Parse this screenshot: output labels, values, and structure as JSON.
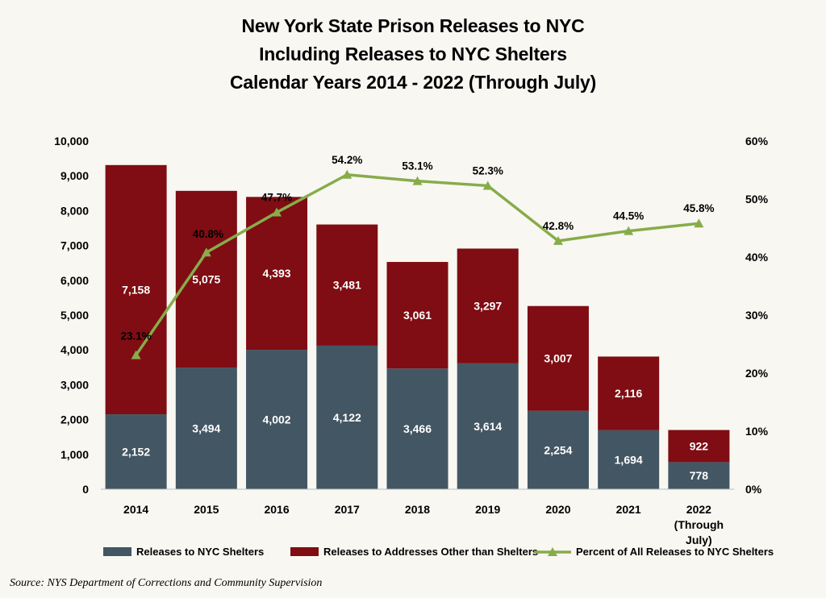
{
  "title_lines": [
    "New York State Prison Releases to NYC",
    "Including Releases to NYC Shelters",
    "Calendar Years 2014 - 2022 (Through July)"
  ],
  "source": "Source: NYS Department of Corrections and Community Supervision",
  "colors": {
    "shelters": "#435663",
    "other": "#7f0d13",
    "percent_line": "#87ac4a"
  },
  "chart_data": {
    "type": "bar",
    "stacked": true,
    "categories": [
      "2014",
      "2015",
      "2016",
      "2017",
      "2018",
      "2019",
      "2020",
      "2021",
      "2022"
    ],
    "category_sublabels": [
      "",
      "",
      "",
      "",
      "",
      "",
      "",
      "",
      "(Through"
    ],
    "category_sublabels2": [
      "",
      "",
      "",
      "",
      "",
      "",
      "",
      "",
      "July)"
    ],
    "series": [
      {
        "name": "Releases to NYC Shelters",
        "values": [
          2152,
          3494,
          4002,
          4122,
          3466,
          3614,
          2254,
          1694,
          778
        ],
        "labels": [
          "2,152",
          "3,494",
          "4,002",
          "4,122",
          "3,466",
          "3,614",
          "2,254",
          "1,694",
          "778"
        ]
      },
      {
        "name": "Releases to Addresses Other than Shelters",
        "values": [
          7158,
          5075,
          4393,
          3481,
          3061,
          3297,
          3007,
          2116,
          922
        ],
        "labels": [
          "7,158",
          "5,075",
          "4,393",
          "3,481",
          "3,061",
          "3,297",
          "3,007",
          "2,116",
          "922"
        ]
      }
    ],
    "line_series": {
      "name": "Percent of All Releases to NYC Shelters",
      "axis": "right",
      "values": [
        23.1,
        40.8,
        47.7,
        54.2,
        53.1,
        52.3,
        42.8,
        44.5,
        45.8
      ],
      "labels": [
        "23.1%",
        "40.8%",
        "47.7%",
        "54.2%",
        "53.1%",
        "52.3%",
        "42.8%",
        "44.5%",
        "45.8%"
      ]
    },
    "ylim": [
      0,
      10000
    ],
    "y_ticks": [
      "0",
      "1,000",
      "2,000",
      "3,000",
      "4,000",
      "5,000",
      "6,000",
      "7,000",
      "8,000",
      "9,000",
      "10,000"
    ],
    "y2lim": [
      0,
      60
    ],
    "y2_ticks": [
      "0%",
      "10%",
      "20%",
      "30%",
      "40%",
      "50%",
      "60%"
    ],
    "legend_position": "bottom"
  }
}
